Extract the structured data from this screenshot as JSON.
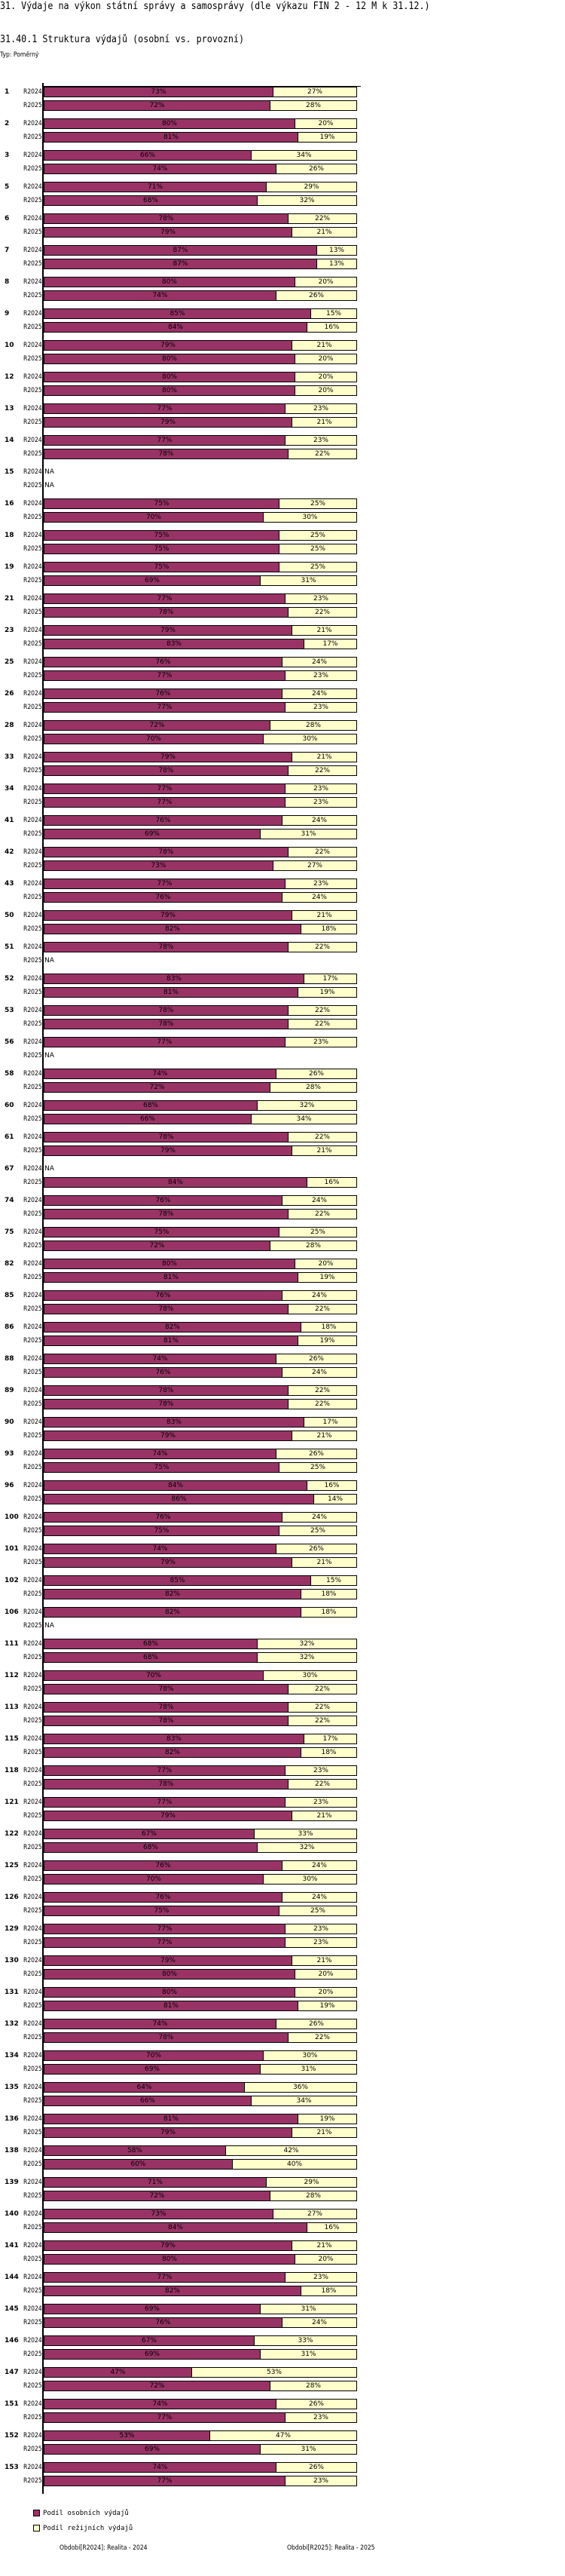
{
  "title": "31. Výdaje na výkon státní správy a samosprávy (dle výkazu FIN 2 - 12 M k 31.12.)",
  "subtitle": "31.40.1 Struktura výdajů (osobní vs. provozní)",
  "type_label": "Typ: Poměrný",
  "colors": {
    "personal": "#993366",
    "overhead": "#FFFFCC"
  },
  "chart_data": {
    "type": "bar",
    "orientation": "horizontal-stacked-percent",
    "title": "31.40.1 Struktura výdajů (osobní vs. provozní)",
    "xlim": [
      0,
      100
    ],
    "na_label": "NA",
    "series_labels": [
      "R2024",
      "R2025"
    ],
    "legend": [
      "Podíl osobních výdajů",
      "Podíl režijních výdajů"
    ],
    "legend_position": "bottom-left",
    "groups": [
      {
        "id": "1",
        "personal": [
          73,
          72
        ],
        "overhead": [
          27,
          28
        ]
      },
      {
        "id": "2",
        "personal": [
          80,
          81
        ],
        "overhead": [
          20,
          19
        ]
      },
      {
        "id": "3",
        "personal": [
          66,
          74
        ],
        "overhead": [
          34,
          26
        ]
      },
      {
        "id": "5",
        "personal": [
          71,
          68
        ],
        "overhead": [
          29,
          32
        ]
      },
      {
        "id": "6",
        "personal": [
          78,
          79
        ],
        "overhead": [
          22,
          21
        ]
      },
      {
        "id": "7",
        "personal": [
          87,
          87
        ],
        "overhead": [
          13,
          13
        ]
      },
      {
        "id": "8",
        "personal": [
          80,
          74
        ],
        "overhead": [
          20,
          26
        ]
      },
      {
        "id": "9",
        "personal": [
          85,
          84
        ],
        "overhead": [
          15,
          16
        ]
      },
      {
        "id": "10",
        "personal": [
          79,
          80
        ],
        "overhead": [
          21,
          20
        ]
      },
      {
        "id": "12",
        "personal": [
          80,
          80
        ],
        "overhead": [
          20,
          20
        ]
      },
      {
        "id": "13",
        "personal": [
          77,
          79
        ],
        "overhead": [
          23,
          21
        ]
      },
      {
        "id": "14",
        "personal": [
          77,
          78
        ],
        "overhead": [
          23,
          22
        ]
      },
      {
        "id": "15",
        "personal": [
          null,
          null
        ],
        "overhead": [
          null,
          null
        ]
      },
      {
        "id": "16",
        "personal": [
          75,
          70
        ],
        "overhead": [
          25,
          30
        ]
      },
      {
        "id": "18",
        "personal": [
          75,
          75
        ],
        "overhead": [
          25,
          25
        ]
      },
      {
        "id": "19",
        "personal": [
          75,
          69
        ],
        "overhead": [
          25,
          31
        ]
      },
      {
        "id": "21",
        "personal": [
          77,
          78
        ],
        "overhead": [
          23,
          22
        ]
      },
      {
        "id": "23",
        "personal": [
          79,
          83
        ],
        "overhead": [
          21,
          17
        ]
      },
      {
        "id": "25",
        "personal": [
          76,
          77
        ],
        "overhead": [
          24,
          23
        ]
      },
      {
        "id": "26",
        "personal": [
          76,
          77
        ],
        "overhead": [
          24,
          23
        ]
      },
      {
        "id": "28",
        "personal": [
          72,
          70
        ],
        "overhead": [
          28,
          30
        ]
      },
      {
        "id": "33",
        "personal": [
          79,
          78
        ],
        "overhead": [
          21,
          22
        ]
      },
      {
        "id": "34",
        "personal": [
          77,
          77
        ],
        "overhead": [
          23,
          23
        ]
      },
      {
        "id": "41",
        "personal": [
          76,
          69
        ],
        "overhead": [
          24,
          31
        ]
      },
      {
        "id": "42",
        "personal": [
          78,
          73
        ],
        "overhead": [
          22,
          27
        ]
      },
      {
        "id": "43",
        "personal": [
          77,
          76
        ],
        "overhead": [
          23,
          24
        ]
      },
      {
        "id": "50",
        "personal": [
          79,
          82
        ],
        "overhead": [
          21,
          18
        ]
      },
      {
        "id": "51",
        "personal": [
          78,
          null
        ],
        "overhead": [
          22,
          null
        ]
      },
      {
        "id": "52",
        "personal": [
          83,
          81
        ],
        "overhead": [
          17,
          19
        ]
      },
      {
        "id": "53",
        "personal": [
          78,
          78
        ],
        "overhead": [
          22,
          22
        ]
      },
      {
        "id": "56",
        "personal": [
          77,
          null
        ],
        "overhead": [
          23,
          null
        ]
      },
      {
        "id": "58",
        "personal": [
          74,
          72
        ],
        "overhead": [
          26,
          28
        ]
      },
      {
        "id": "60",
        "personal": [
          68,
          66
        ],
        "overhead": [
          32,
          34
        ]
      },
      {
        "id": "61",
        "personal": [
          78,
          79
        ],
        "overhead": [
          22,
          21
        ]
      },
      {
        "id": "67",
        "personal": [
          null,
          84
        ],
        "overhead": [
          null,
          16
        ]
      },
      {
        "id": "74",
        "personal": [
          76,
          78
        ],
        "overhead": [
          24,
          22
        ]
      },
      {
        "id": "75",
        "personal": [
          75,
          72
        ],
        "overhead": [
          25,
          28
        ]
      },
      {
        "id": "82",
        "personal": [
          80,
          81
        ],
        "overhead": [
          20,
          19
        ]
      },
      {
        "id": "85",
        "personal": [
          76,
          78
        ],
        "overhead": [
          24,
          22
        ]
      },
      {
        "id": "86",
        "personal": [
          82,
          81
        ],
        "overhead": [
          18,
          19
        ]
      },
      {
        "id": "88",
        "personal": [
          74,
          76
        ],
        "overhead": [
          26,
          24
        ]
      },
      {
        "id": "89",
        "personal": [
          78,
          78
        ],
        "overhead": [
          22,
          22
        ]
      },
      {
        "id": "90",
        "personal": [
          83,
          79
        ],
        "overhead": [
          17,
          21
        ]
      },
      {
        "id": "93",
        "personal": [
          74,
          75
        ],
        "overhead": [
          26,
          25
        ]
      },
      {
        "id": "96",
        "personal": [
          84,
          86
        ],
        "overhead": [
          16,
          14
        ]
      },
      {
        "id": "100",
        "personal": [
          76,
          75
        ],
        "overhead": [
          24,
          25
        ]
      },
      {
        "id": "101",
        "personal": [
          74,
          79
        ],
        "overhead": [
          26,
          21
        ]
      },
      {
        "id": "102",
        "personal": [
          85,
          82
        ],
        "overhead": [
          15,
          18
        ]
      },
      {
        "id": "106",
        "personal": [
          82,
          null
        ],
        "overhead": [
          18,
          null
        ]
      },
      {
        "id": "111",
        "personal": [
          68,
          68
        ],
        "overhead": [
          32,
          32
        ]
      },
      {
        "id": "112",
        "personal": [
          70,
          78
        ],
        "overhead": [
          30,
          22
        ]
      },
      {
        "id": "113",
        "personal": [
          78,
          78
        ],
        "overhead": [
          22,
          22
        ]
      },
      {
        "id": "115",
        "personal": [
          83,
          82
        ],
        "overhead": [
          17,
          18
        ]
      },
      {
        "id": "118",
        "personal": [
          77,
          78
        ],
        "overhead": [
          23,
          22
        ]
      },
      {
        "id": "121",
        "personal": [
          77,
          79
        ],
        "overhead": [
          23,
          21
        ]
      },
      {
        "id": "122",
        "personal": [
          67,
          68
        ],
        "overhead": [
          33,
          32
        ]
      },
      {
        "id": "125",
        "personal": [
          76,
          70
        ],
        "overhead": [
          24,
          30
        ]
      },
      {
        "id": "126",
        "personal": [
          76,
          75
        ],
        "overhead": [
          24,
          25
        ]
      },
      {
        "id": "129",
        "personal": [
          77,
          77
        ],
        "overhead": [
          23,
          23
        ]
      },
      {
        "id": "130",
        "personal": [
          79,
          80
        ],
        "overhead": [
          21,
          20
        ]
      },
      {
        "id": "131",
        "personal": [
          80,
          81
        ],
        "overhead": [
          20,
          19
        ]
      },
      {
        "id": "132",
        "personal": [
          74,
          78
        ],
        "overhead": [
          26,
          22
        ]
      },
      {
        "id": "134",
        "personal": [
          70,
          69
        ],
        "overhead": [
          30,
          31
        ]
      },
      {
        "id": "135",
        "personal": [
          64,
          66
        ],
        "overhead": [
          36,
          34
        ]
      },
      {
        "id": "136",
        "personal": [
          81,
          79
        ],
        "overhead": [
          19,
          21
        ]
      },
      {
        "id": "138",
        "personal": [
          58,
          60
        ],
        "overhead": [
          42,
          40
        ]
      },
      {
        "id": "139",
        "personal": [
          71,
          72
        ],
        "overhead": [
          29,
          28
        ]
      },
      {
        "id": "140",
        "personal": [
          73,
          84
        ],
        "overhead": [
          27,
          16
        ]
      },
      {
        "id": "141",
        "personal": [
          79,
          80
        ],
        "overhead": [
          21,
          20
        ]
      },
      {
        "id": "144",
        "personal": [
          77,
          82
        ],
        "overhead": [
          23,
          18
        ]
      },
      {
        "id": "145",
        "personal": [
          69,
          76
        ],
        "overhead": [
          31,
          24
        ]
      },
      {
        "id": "146",
        "personal": [
          67,
          69
        ],
        "overhead": [
          33,
          31
        ]
      },
      {
        "id": "147",
        "personal": [
          47,
          72
        ],
        "overhead": [
          53,
          28
        ]
      },
      {
        "id": "151",
        "personal": [
          74,
          77
        ],
        "overhead": [
          26,
          23
        ]
      },
      {
        "id": "152",
        "personal": [
          53,
          69
        ],
        "overhead": [
          47,
          31
        ]
      },
      {
        "id": "153",
        "personal": [
          74,
          77
        ],
        "overhead": [
          26,
          23
        ]
      }
    ]
  },
  "legend": {
    "personal": "Podíl osobních výdajů",
    "overhead": "Podíl režijních výdajů"
  },
  "footer": {
    "period_2024": "Období[R2024]: Realita - 2024",
    "period_2025": "Období[R2025]: Realita - 2025"
  }
}
